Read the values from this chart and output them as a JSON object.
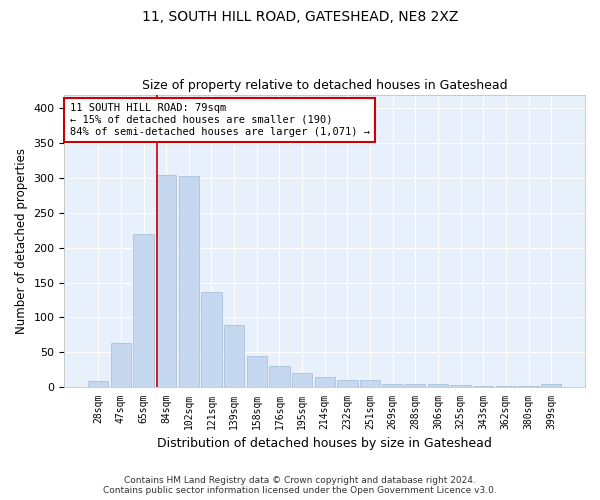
{
  "title1": "11, SOUTH HILL ROAD, GATESHEAD, NE8 2XZ",
  "title2": "Size of property relative to detached houses in Gateshead",
  "xlabel": "Distribution of detached houses by size in Gateshead",
  "ylabel": "Number of detached properties",
  "categories": [
    "28sqm",
    "47sqm",
    "65sqm",
    "84sqm",
    "102sqm",
    "121sqm",
    "139sqm",
    "158sqm",
    "176sqm",
    "195sqm",
    "214sqm",
    "232sqm",
    "251sqm",
    "269sqm",
    "288sqm",
    "306sqm",
    "325sqm",
    "343sqm",
    "362sqm",
    "380sqm",
    "399sqm"
  ],
  "values": [
    9,
    63,
    220,
    305,
    303,
    137,
    89,
    45,
    31,
    21,
    15,
    11,
    10,
    4,
    5,
    4,
    3,
    2,
    2,
    1,
    4
  ],
  "bar_color": "#c5d8f0",
  "bar_edge_color": "#a0bcd8",
  "background_color": "#e8f0fb",
  "grid_color": "#ffffff",
  "annotation_text": "11 SOUTH HILL ROAD: 79sqm\n← 15% of detached houses are smaller (190)\n84% of semi-detached houses are larger (1,071) →",
  "annotation_box_color": "#ffffff",
  "annotation_box_edge": "#cc0000",
  "ylim": [
    0,
    420
  ],
  "yticks": [
    0,
    50,
    100,
    150,
    200,
    250,
    300,
    350,
    400
  ],
  "footer1": "Contains HM Land Registry data © Crown copyright and database right 2024.",
  "footer2": "Contains public sector information licensed under the Open Government Licence v3.0.",
  "red_line_index": 2.575
}
